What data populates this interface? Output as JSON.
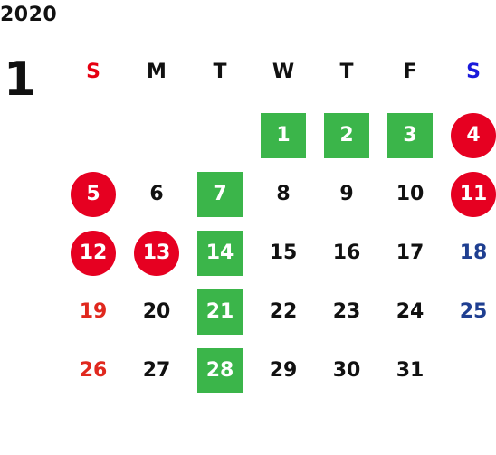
{
  "calendar": {
    "year": "2020",
    "month": "1",
    "weekdays": [
      "S",
      "M",
      "T",
      "W",
      "T",
      "F",
      "S"
    ],
    "weekday_colors": [
      "#e60012",
      "#111111",
      "#111111",
      "#111111",
      "#111111",
      "#111111",
      "#1a1adb"
    ],
    "days": [
      {
        "day": "1",
        "style": "green"
      },
      {
        "day": "2",
        "style": "green"
      },
      {
        "day": "3",
        "style": "green"
      },
      {
        "day": "4",
        "style": "red"
      },
      {
        "day": "5",
        "style": "red"
      },
      {
        "day": "6",
        "style": "plain"
      },
      {
        "day": "7",
        "style": "green"
      },
      {
        "day": "8",
        "style": "plain"
      },
      {
        "day": "9",
        "style": "plain"
      },
      {
        "day": "10",
        "style": "plain"
      },
      {
        "day": "11",
        "style": "red"
      },
      {
        "day": "12",
        "style": "red"
      },
      {
        "day": "13",
        "style": "red"
      },
      {
        "day": "14",
        "style": "green"
      },
      {
        "day": "15",
        "style": "plain"
      },
      {
        "day": "16",
        "style": "plain"
      },
      {
        "day": "17",
        "style": "plain"
      },
      {
        "day": "18",
        "style": "plain"
      },
      {
        "day": "19",
        "style": "plain"
      },
      {
        "day": "20",
        "style": "plain"
      },
      {
        "day": "21",
        "style": "green"
      },
      {
        "day": "22",
        "style": "plain"
      },
      {
        "day": "23",
        "style": "plain"
      },
      {
        "day": "24",
        "style": "plain"
      },
      {
        "day": "25",
        "style": "plain"
      },
      {
        "day": "26",
        "style": "plain"
      },
      {
        "day": "27",
        "style": "plain"
      },
      {
        "day": "28",
        "style": "green"
      },
      {
        "day": "29",
        "style": "plain"
      },
      {
        "day": "30",
        "style": "plain"
      },
      {
        "day": "31",
        "style": "plain"
      }
    ],
    "colors": {
      "green": "#3bb54a",
      "red": "#e60021",
      "sunday_text": "#e0281e",
      "saturday_text": "#1f3f91",
      "weekday_text": "#111111"
    }
  }
}
